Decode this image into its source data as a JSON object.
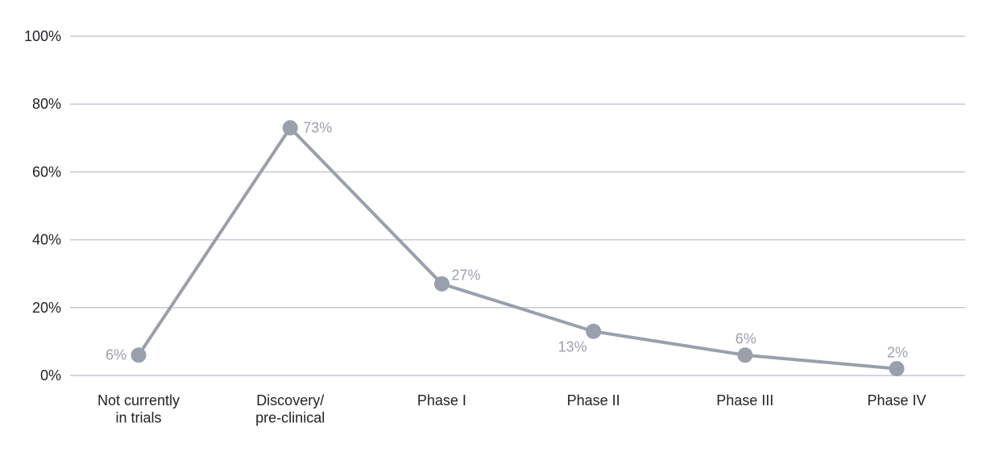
{
  "chart_data": {
    "type": "line",
    "title": "",
    "xlabel": "",
    "ylabel": "",
    "legend": "none",
    "grid": true,
    "categories": [
      [
        "Not currently",
        "in trials"
      ],
      [
        "Discovery/",
        "pre-clinical"
      ],
      [
        "Phase I"
      ],
      [
        "Phase II"
      ],
      [
        "Phase III"
      ],
      [
        "Phase IV"
      ]
    ],
    "values": [
      6,
      73,
      27,
      13,
      6,
      2
    ],
    "point_labels": [
      "6%",
      "73%",
      "27%",
      "13%",
      "6%",
      "2%"
    ],
    "point_label_positions": [
      "left",
      "right",
      "above-right",
      "below-left",
      "above",
      "above"
    ],
    "y_axis": {
      "range": [
        0,
        100
      ],
      "ticks": [
        {
          "value": 0,
          "label": "0%"
        },
        {
          "value": 20,
          "label": "20%"
        },
        {
          "value": 40,
          "label": "40%"
        },
        {
          "value": 60,
          "label": "60%"
        },
        {
          "value": 80,
          "label": "80%"
        },
        {
          "value": 100,
          "label": "100%"
        }
      ]
    },
    "colors": {
      "series": "#99a0ac",
      "marker": "#99a0ac",
      "gridline": "#c4c9d8",
      "axis_text": "#212327",
      "data_label": "#9aa2ae",
      "background": "#ffffff"
    }
  }
}
